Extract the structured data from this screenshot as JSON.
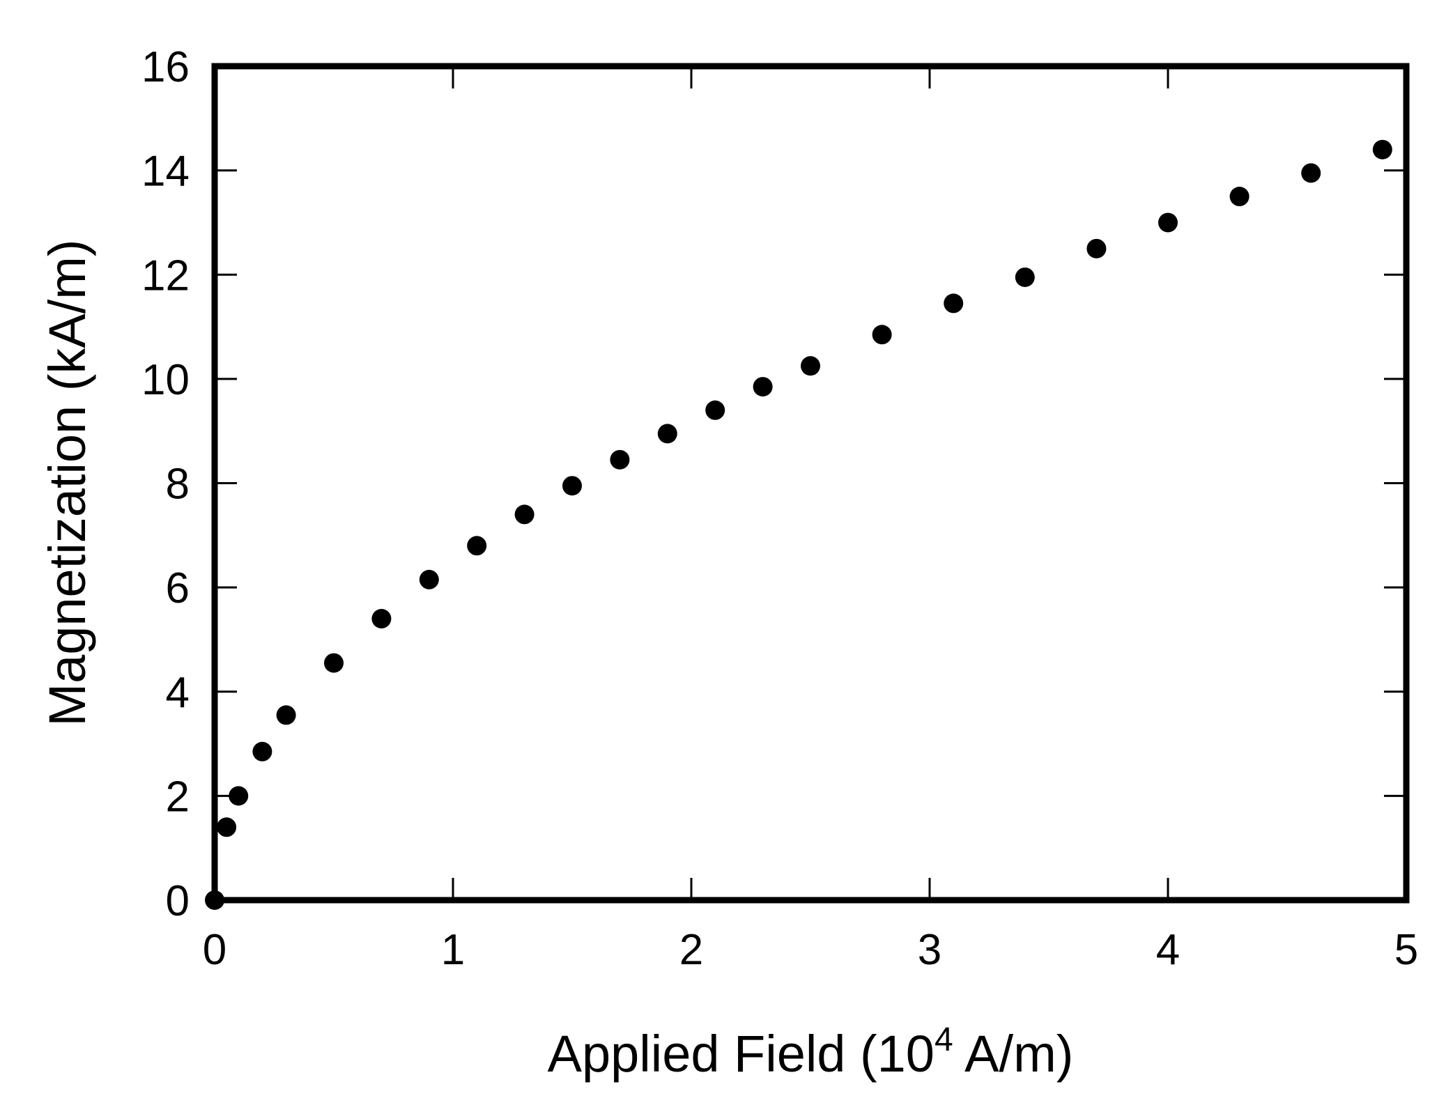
{
  "chart_data": {
    "type": "scatter",
    "title": "",
    "xlabel": {
      "pre": "Applied Field (10",
      "sup": "4",
      "post": " A/m)"
    },
    "ylabel": "Magnetization (kA/m)",
    "xlim": [
      0,
      5
    ],
    "ylim": [
      0,
      16
    ],
    "xticks": [
      0,
      1,
      2,
      3,
      4,
      5
    ],
    "yticks": [
      0,
      2,
      4,
      6,
      8,
      10,
      12,
      14,
      16
    ],
    "xtick_labels": [
      "0",
      "1",
      "2",
      "3",
      "4",
      "5"
    ],
    "ytick_labels": [
      "0",
      "2",
      "4",
      "6",
      "8",
      "10",
      "12",
      "14",
      "16"
    ],
    "grid": false,
    "legend": "none",
    "marker": "filled-circle",
    "series": [
      {
        "x": [
          0,
          0.05,
          0.1,
          0.2,
          0.3,
          0.5,
          0.7,
          0.9,
          1.1,
          1.3,
          1.5,
          1.7,
          1.9,
          2.1,
          2.3,
          2.5,
          2.8,
          3.1,
          3.4,
          3.7,
          4.0,
          4.3,
          4.6,
          4.9
        ],
        "y": [
          0,
          1.4,
          2.0,
          2.85,
          3.55,
          4.55,
          5.4,
          6.15,
          6.8,
          7.4,
          7.95,
          8.45,
          8.95,
          9.4,
          9.85,
          10.25,
          10.85,
          11.45,
          11.95,
          12.5,
          13.0,
          13.5,
          13.95,
          14.4
        ]
      }
    ]
  }
}
